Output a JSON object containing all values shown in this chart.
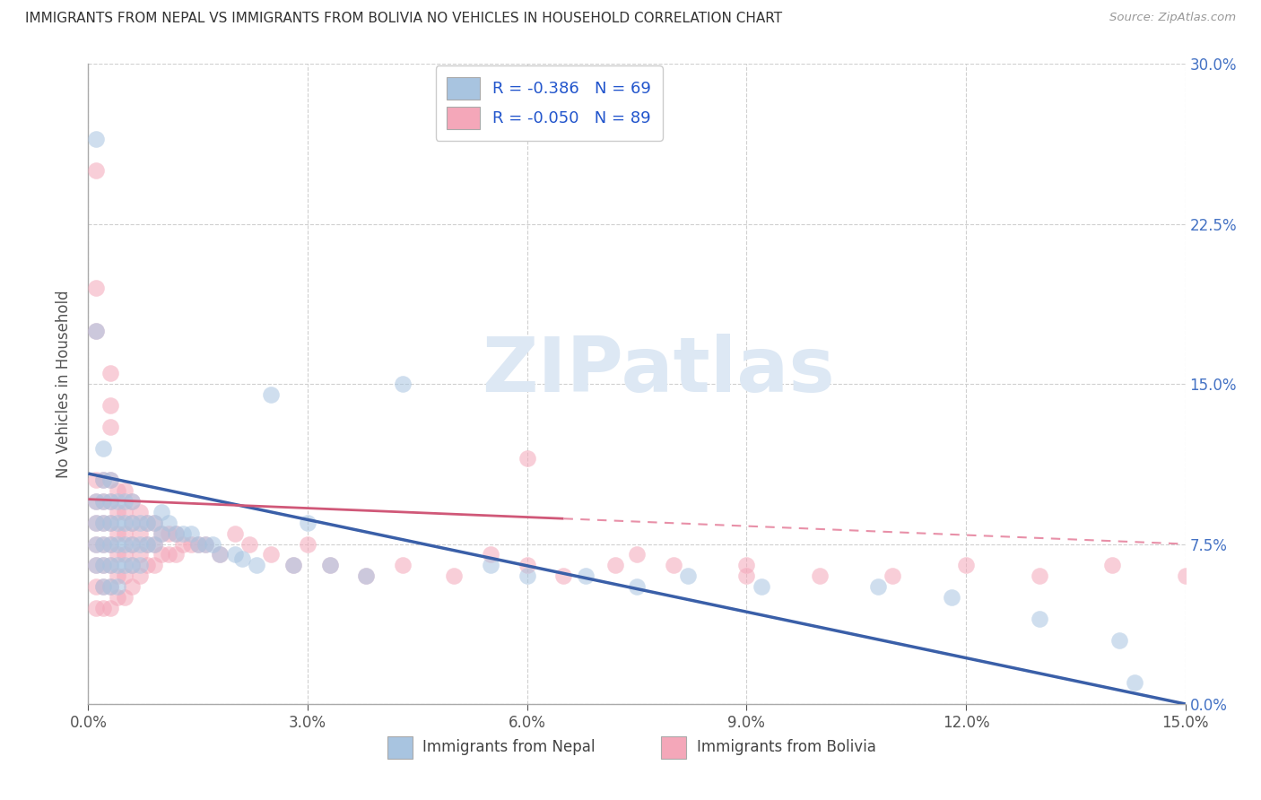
{
  "title": "IMMIGRANTS FROM NEPAL VS IMMIGRANTS FROM BOLIVIA NO VEHICLES IN HOUSEHOLD CORRELATION CHART",
  "source": "Source: ZipAtlas.com",
  "ylabel": "No Vehicles in Household",
  "xlabel_nepal": "Immigrants from Nepal",
  "xlabel_bolivia": "Immigrants from Bolivia",
  "nepal_R": -0.386,
  "nepal_N": 69,
  "bolivia_R": -0.05,
  "bolivia_N": 89,
  "nepal_color": "#a8c4e0",
  "bolivia_color": "#f4a7b9",
  "nepal_line_color": "#3a5fa8",
  "bolivia_line_color_solid": "#d05878",
  "bolivia_line_color_dash": "#e890a8",
  "watermark_text": "ZIPatlas",
  "watermark_color": "#dde8f4",
  "xlim": [
    0.0,
    0.15
  ],
  "ylim": [
    0.0,
    0.3
  ],
  "xtick_vals": [
    0.0,
    0.03,
    0.06,
    0.09,
    0.12,
    0.15
  ],
  "xtick_labs": [
    "0.0%",
    "3.0%",
    "6.0%",
    "9.0%",
    "12.0%",
    "15.0%"
  ],
  "ytick_vals": [
    0.0,
    0.075,
    0.15,
    0.225,
    0.3
  ],
  "ytick_labs": [
    "0.0%",
    "7.5%",
    "15.0%",
    "22.5%",
    "30.0%"
  ],
  "nepal_x": [
    0.001,
    0.001,
    0.001,
    0.001,
    0.001,
    0.002,
    0.002,
    0.002,
    0.002,
    0.002,
    0.002,
    0.003,
    0.003,
    0.003,
    0.003,
    0.003,
    0.003,
    0.004,
    0.004,
    0.004,
    0.004,
    0.004,
    0.005,
    0.005,
    0.005,
    0.005,
    0.006,
    0.006,
    0.006,
    0.006,
    0.007,
    0.007,
    0.007,
    0.008,
    0.008,
    0.009,
    0.009,
    0.01,
    0.01,
    0.011,
    0.012,
    0.013,
    0.014,
    0.015,
    0.016,
    0.017,
    0.018,
    0.02,
    0.021,
    0.023,
    0.025,
    0.028,
    0.03,
    0.033,
    0.038,
    0.043,
    0.055,
    0.06,
    0.068,
    0.075,
    0.082,
    0.092,
    0.108,
    0.118,
    0.13,
    0.141,
    0.143,
    0.001,
    0.002
  ],
  "nepal_y": [
    0.265,
    0.095,
    0.085,
    0.075,
    0.065,
    0.105,
    0.095,
    0.085,
    0.075,
    0.065,
    0.055,
    0.105,
    0.095,
    0.085,
    0.075,
    0.065,
    0.055,
    0.095,
    0.085,
    0.075,
    0.065,
    0.055,
    0.095,
    0.085,
    0.075,
    0.065,
    0.095,
    0.085,
    0.075,
    0.065,
    0.085,
    0.075,
    0.065,
    0.085,
    0.075,
    0.085,
    0.075,
    0.09,
    0.08,
    0.085,
    0.08,
    0.08,
    0.08,
    0.075,
    0.075,
    0.075,
    0.07,
    0.07,
    0.068,
    0.065,
    0.145,
    0.065,
    0.085,
    0.065,
    0.06,
    0.15,
    0.065,
    0.06,
    0.06,
    0.055,
    0.06,
    0.055,
    0.055,
    0.05,
    0.04,
    0.03,
    0.01,
    0.175,
    0.12
  ],
  "bolivia_x": [
    0.001,
    0.001,
    0.001,
    0.001,
    0.001,
    0.001,
    0.001,
    0.002,
    0.002,
    0.002,
    0.002,
    0.002,
    0.002,
    0.002,
    0.003,
    0.003,
    0.003,
    0.003,
    0.003,
    0.003,
    0.003,
    0.004,
    0.004,
    0.004,
    0.004,
    0.004,
    0.004,
    0.005,
    0.005,
    0.005,
    0.005,
    0.005,
    0.005,
    0.006,
    0.006,
    0.006,
    0.006,
    0.006,
    0.007,
    0.007,
    0.007,
    0.007,
    0.008,
    0.008,
    0.008,
    0.009,
    0.009,
    0.009,
    0.01,
    0.01,
    0.011,
    0.011,
    0.012,
    0.012,
    0.013,
    0.014,
    0.015,
    0.016,
    0.018,
    0.02,
    0.022,
    0.025,
    0.028,
    0.03,
    0.033,
    0.038,
    0.043,
    0.05,
    0.055,
    0.06,
    0.065,
    0.072,
    0.08,
    0.09,
    0.1,
    0.11,
    0.12,
    0.13,
    0.14,
    0.15,
    0.001,
    0.001,
    0.001,
    0.003,
    0.003,
    0.003,
    0.06,
    0.075,
    0.09
  ],
  "bolivia_y": [
    0.105,
    0.095,
    0.085,
    0.075,
    0.065,
    0.055,
    0.045,
    0.105,
    0.095,
    0.085,
    0.075,
    0.065,
    0.055,
    0.045,
    0.105,
    0.095,
    0.085,
    0.075,
    0.065,
    0.055,
    0.045,
    0.1,
    0.09,
    0.08,
    0.07,
    0.06,
    0.05,
    0.1,
    0.09,
    0.08,
    0.07,
    0.06,
    0.05,
    0.095,
    0.085,
    0.075,
    0.065,
    0.055,
    0.09,
    0.08,
    0.07,
    0.06,
    0.085,
    0.075,
    0.065,
    0.085,
    0.075,
    0.065,
    0.08,
    0.07,
    0.08,
    0.07,
    0.08,
    0.07,
    0.075,
    0.075,
    0.075,
    0.075,
    0.07,
    0.08,
    0.075,
    0.07,
    0.065,
    0.075,
    0.065,
    0.06,
    0.065,
    0.06,
    0.07,
    0.065,
    0.06,
    0.065,
    0.065,
    0.065,
    0.06,
    0.06,
    0.065,
    0.06,
    0.065,
    0.06,
    0.25,
    0.195,
    0.175,
    0.155,
    0.14,
    0.13,
    0.115,
    0.07,
    0.06
  ],
  "bolivia_line_dash_start": 0.065,
  "nepal_line_intercept": 0.108,
  "nepal_line_slope": -0.72,
  "bolivia_line_intercept": 0.096,
  "bolivia_line_slope": -0.14
}
